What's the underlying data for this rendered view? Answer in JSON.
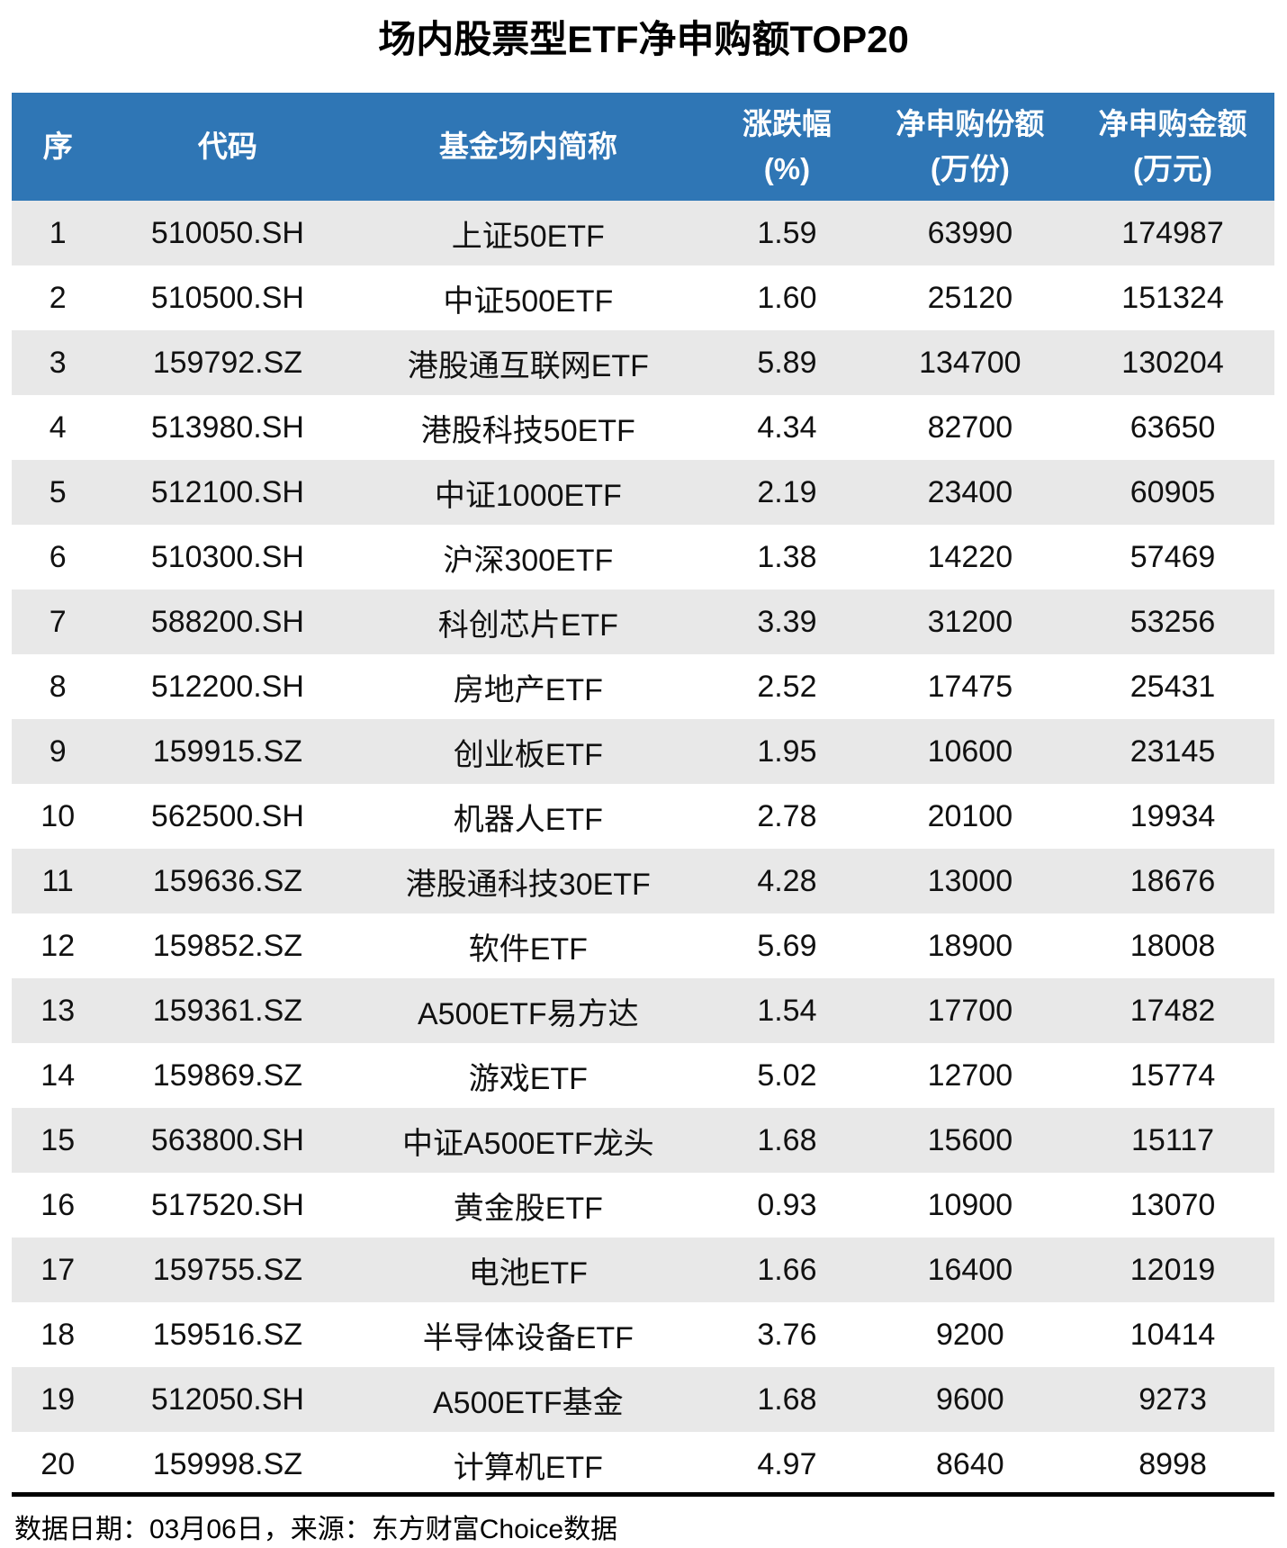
{
  "title": "场内股票型ETF净申购额TOP20",
  "footer": {
    "source_line": "数据日期：03月06日，来源：东方财富Choice数据"
  },
  "colors": {
    "header_bg": "#2F76B5",
    "header_text": "#FFFFFF",
    "stripe_bg": "#E8E8E8",
    "text": "#111111"
  },
  "chart_data": {
    "type": "table",
    "title": "场内股票型ETF净申购额TOP20",
    "columns": [
      {
        "lines": [
          "序"
        ]
      },
      {
        "lines": [
          "代码"
        ]
      },
      {
        "lines": [
          "基金场内简称"
        ]
      },
      {
        "lines": [
          "涨跌幅",
          "(%)"
        ]
      },
      {
        "lines": [
          "净申购份额",
          "(万份)"
        ]
      },
      {
        "lines": [
          "净申购金额",
          "(万元)"
        ]
      }
    ],
    "rows": [
      [
        "1",
        "510050.SH",
        "上证50ETF",
        "1.59",
        "63990",
        "174987"
      ],
      [
        "2",
        "510500.SH",
        "中证500ETF",
        "1.60",
        "25120",
        "151324"
      ],
      [
        "3",
        "159792.SZ",
        "港股通互联网ETF",
        "5.89",
        "134700",
        "130204"
      ],
      [
        "4",
        "513980.SH",
        "港股科技50ETF",
        "4.34",
        "82700",
        "63650"
      ],
      [
        "5",
        "512100.SH",
        "中证1000ETF",
        "2.19",
        "23400",
        "60905"
      ],
      [
        "6",
        "510300.SH",
        "沪深300ETF",
        "1.38",
        "14220",
        "57469"
      ],
      [
        "7",
        "588200.SH",
        "科创芯片ETF",
        "3.39",
        "31200",
        "53256"
      ],
      [
        "8",
        "512200.SH",
        "房地产ETF",
        "2.52",
        "17475",
        "25431"
      ],
      [
        "9",
        "159915.SZ",
        "创业板ETF",
        "1.95",
        "10600",
        "23145"
      ],
      [
        "10",
        "562500.SH",
        "机器人ETF",
        "2.78",
        "20100",
        "19934"
      ],
      [
        "11",
        "159636.SZ",
        "港股通科技30ETF",
        "4.28",
        "13000",
        "18676"
      ],
      [
        "12",
        "159852.SZ",
        "软件ETF",
        "5.69",
        "18900",
        "18008"
      ],
      [
        "13",
        "159361.SZ",
        "A500ETF易方达",
        "1.54",
        "17700",
        "17482"
      ],
      [
        "14",
        "159869.SZ",
        "游戏ETF",
        "5.02",
        "12700",
        "15774"
      ],
      [
        "15",
        "563800.SH",
        "中证A500ETF龙头",
        "1.68",
        "15600",
        "15117"
      ],
      [
        "16",
        "517520.SH",
        "黄金股ETF",
        "0.93",
        "10900",
        "13070"
      ],
      [
        "17",
        "159755.SZ",
        "电池ETF",
        "1.66",
        "16400",
        "12019"
      ],
      [
        "18",
        "159516.SZ",
        "半导体设备ETF",
        "3.76",
        "9200",
        "10414"
      ],
      [
        "19",
        "512050.SH",
        "A500ETF基金",
        "1.68",
        "9600",
        "9273"
      ],
      [
        "20",
        "159998.SZ",
        "计算机ETF",
        "4.97",
        "8640",
        "8998"
      ]
    ]
  }
}
